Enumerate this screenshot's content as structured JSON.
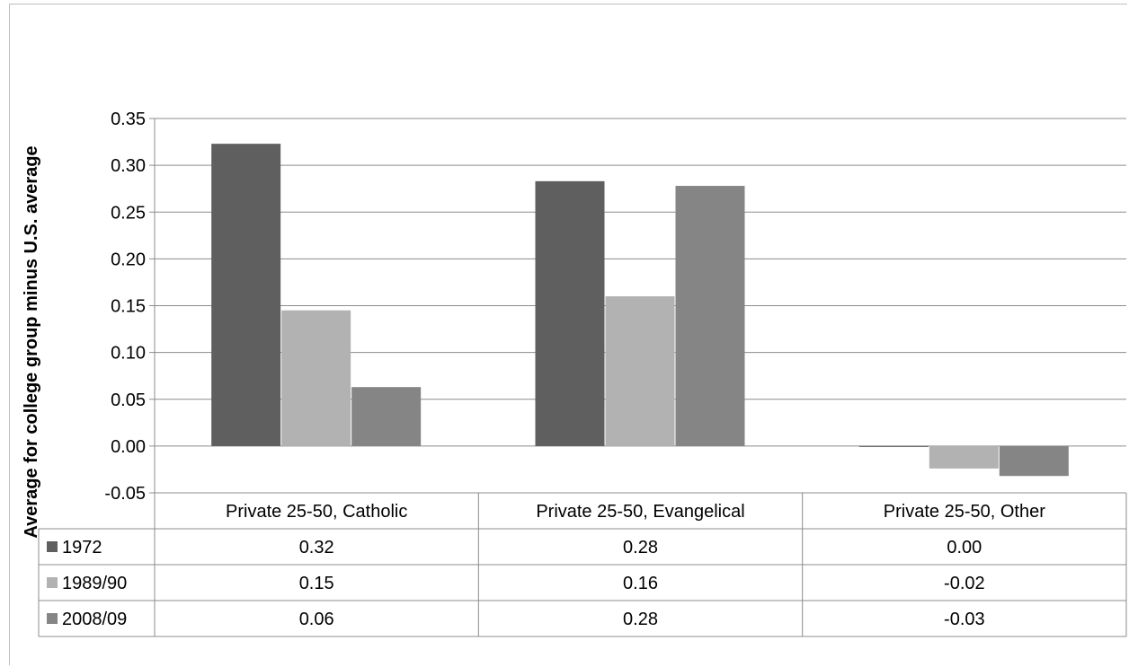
{
  "chart_data": {
    "type": "bar",
    "title": "",
    "xlabel": "",
    "ylabel": "Average for college group minus U.S. average",
    "ylim": [
      -0.05,
      0.35
    ],
    "y_ticks": [
      "0.35",
      "0.30",
      "0.25",
      "0.20",
      "0.15",
      "0.10",
      "0.05",
      "0.00",
      "-0.05"
    ],
    "grid": true,
    "legend": "data-table",
    "categories": [
      "Private 25-50, Catholic",
      "Private 25-50, Evangelical",
      "Private 25-50, Other"
    ],
    "series": [
      {
        "name": "1972",
        "color": "#5f5f5f",
        "values": [
          0.323,
          0.283,
          -0.001
        ],
        "labels": [
          "0.32",
          "0.28",
          "0.00"
        ]
      },
      {
        "name": "1989/90",
        "color": "#b2b2b2",
        "values": [
          0.145,
          0.16,
          -0.024
        ],
        "labels": [
          "0.15",
          "0.16",
          "-0.02"
        ]
      },
      {
        "name": "2008/09",
        "color": "#858585",
        "values": [
          0.063,
          0.278,
          -0.032
        ],
        "labels": [
          "0.06",
          "0.28",
          "-0.03"
        ]
      }
    ]
  }
}
